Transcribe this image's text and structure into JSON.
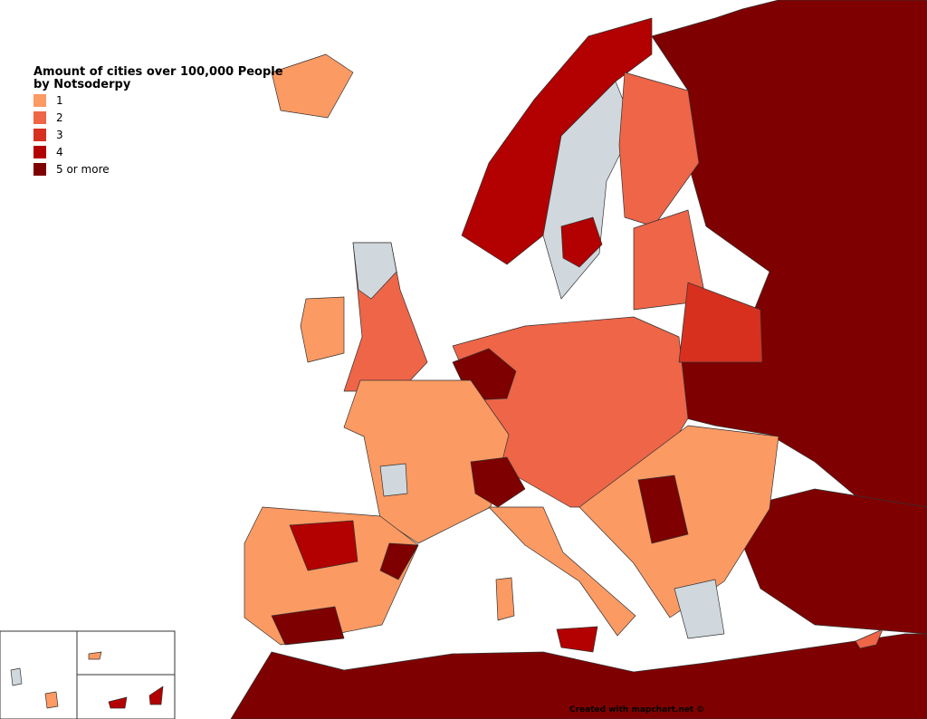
{
  "legend": {
    "title": "Amount of cities over 100,000 People by Notsoderpy",
    "items": [
      {
        "label": "1",
        "color": "#fc9a63"
      },
      {
        "label": "2",
        "color": "#ee6548"
      },
      {
        "label": "3",
        "color": "#d7301f"
      },
      {
        "label": "4",
        "color": "#b30000"
      },
      {
        "label": "5 or more",
        "color": "#7f0000"
      }
    ]
  },
  "footer": "Created with mapchart.net ©"
}
